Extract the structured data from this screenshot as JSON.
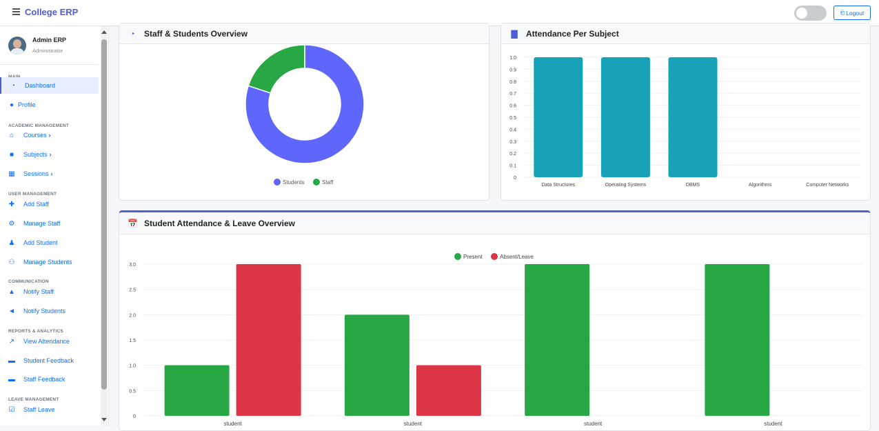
{
  "app": {
    "title": "College ERP",
    "logout_label": "Logout"
  },
  "user": {
    "name": "Admin ERP",
    "role": "Administrator"
  },
  "sidebar": {
    "sections": [
      "MAIN",
      "ACADEMIC MANAGEMENT",
      "USER MANAGEMENT",
      "COMMUNICATION",
      "REPORTS & ANALYTICS",
      "LEAVE MANAGEMENT"
    ],
    "items": [
      {
        "label": "Dashboard",
        "icon": "dashboard-icon"
      },
      {
        "label": "Profile",
        "icon": "user-circle-icon"
      },
      {
        "label": "Courses",
        "icon": "graduation-cap-icon"
      },
      {
        "label": "Subjects",
        "icon": "book-icon"
      },
      {
        "label": "Sessions",
        "icon": "calendar-icon"
      },
      {
        "label": "Add Staff",
        "icon": "user-plus-icon"
      },
      {
        "label": "Manage Staff",
        "icon": "users-cog-icon"
      },
      {
        "label": "Add Student",
        "icon": "user-graduate-icon"
      },
      {
        "label": "Manage Students",
        "icon": "users-icon"
      },
      {
        "label": "Notify Staff",
        "icon": "bell-icon"
      },
      {
        "label": "Notify Students",
        "icon": "bullhorn-icon"
      },
      {
        "label": "View Attendance",
        "icon": "line-chart-icon"
      },
      {
        "label": "Student Feedback",
        "icon": "comments-icon"
      },
      {
        "label": "Staff Feedback",
        "icon": "comment-icon"
      },
      {
        "label": "Staff Leave",
        "icon": "calendar-check-icon"
      }
    ]
  },
  "cards": {
    "overview_title": "Staff & Students Overview",
    "attendance_title": "Attendance Per Subject",
    "leave_title": "Student Attendance & Leave Overview"
  },
  "colors": {
    "accent": "#4e5ed6",
    "students": "#5f66fb",
    "staff": "#27a844",
    "attendance": "#17a2b8",
    "present": "#28a745",
    "absent": "#dc3545"
  },
  "chart_data": [
    {
      "type": "pie",
      "title": "Staff & Students Overview",
      "labels": [
        "Students",
        "Staff"
      ],
      "values": [
        4,
        1
      ],
      "legend": "bottom"
    },
    {
      "type": "bar",
      "title": "Attendance Per Subject",
      "categories": [
        "Data Structures",
        "Operating Systems",
        "DBMS",
        "Algorithms",
        "Computer Networks"
      ],
      "values": [
        1,
        1,
        1,
        0,
        0
      ],
      "ylim": [
        0,
        1.0
      ],
      "yticks": [
        "1.0",
        "0.9",
        "0.8",
        "0.7",
        "0.6",
        "0.5",
        "0.4",
        "0.3",
        "0.2",
        "0.1",
        "0"
      ]
    },
    {
      "type": "bar",
      "title": "Student Attendance & Leave Overview",
      "categories": [
        "student",
        "student",
        "student",
        "student"
      ],
      "series": [
        {
          "name": "Present",
          "values": [
            1,
            2,
            3,
            3
          ]
        },
        {
          "name": "Absent/Leave",
          "values": [
            3,
            1,
            0,
            0
          ]
        }
      ],
      "ylim": [
        0,
        3.0
      ],
      "yticks": [
        "3.0",
        "2.5",
        "2.0",
        "1.5",
        "1.0",
        "0.5",
        "0"
      ],
      "legend": "top"
    }
  ]
}
